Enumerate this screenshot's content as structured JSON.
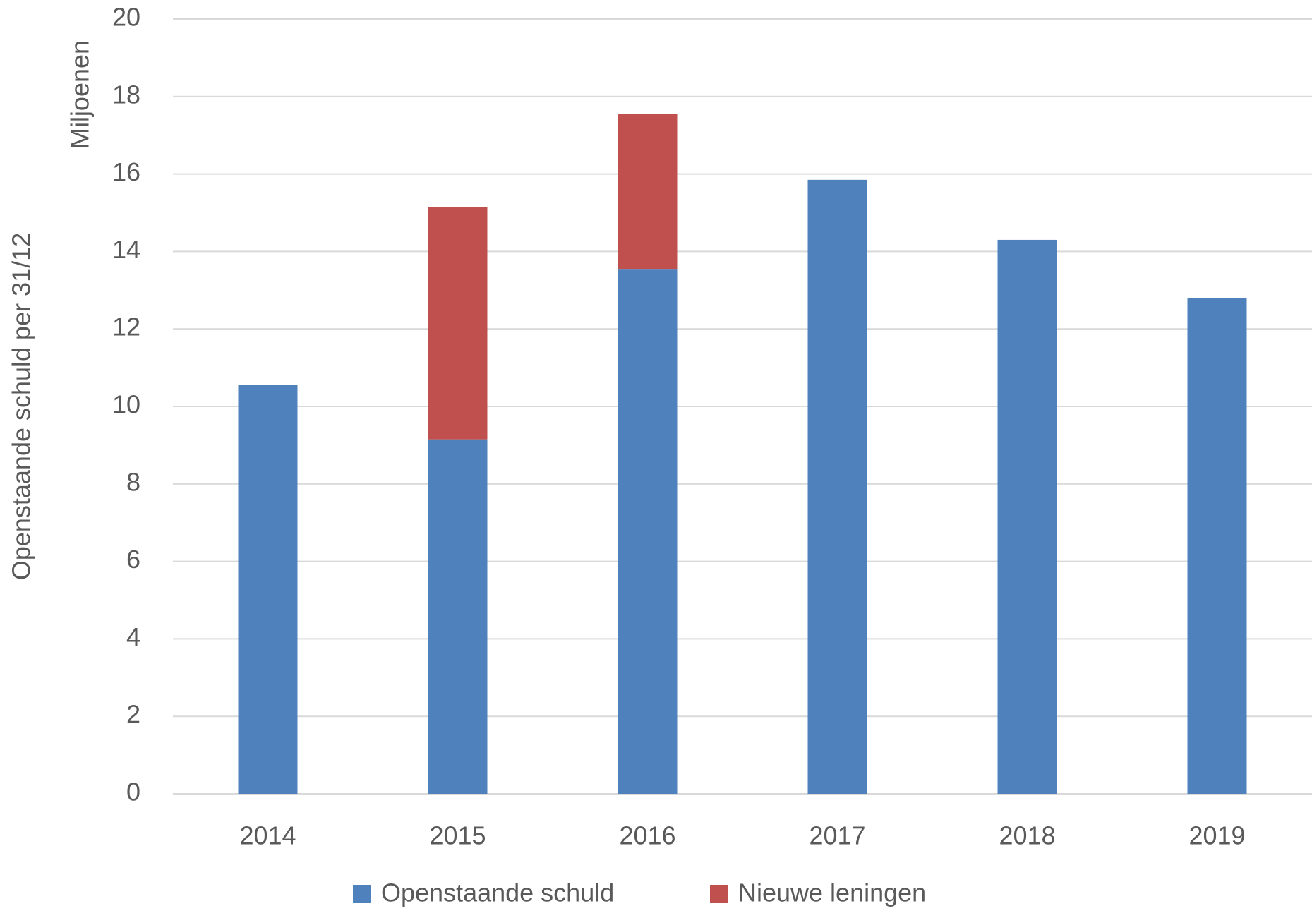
{
  "chart_data": {
    "type": "bar",
    "stacked": true,
    "y_label": "Openstaande schuld per 31/12",
    "y_unit_label": "Miljoenen",
    "categories": [
      "2014",
      "2015",
      "2016",
      "2017",
      "2018",
      "2019"
    ],
    "series": [
      {
        "name": "Openstaande schuld",
        "color": "#4f81bd",
        "values": [
          10.55,
          9.15,
          13.55,
          15.85,
          14.3,
          12.8
        ]
      },
      {
        "name": "Nieuwe leningen",
        "color": "#c0504d",
        "values": [
          null,
          6.0,
          4.0,
          null,
          null,
          null
        ]
      }
    ],
    "ylim": [
      0,
      20
    ],
    "yticks": [
      0,
      2,
      4,
      6,
      8,
      10,
      12,
      14,
      16,
      18,
      20
    ],
    "grid": true,
    "legend": "bottom"
  }
}
